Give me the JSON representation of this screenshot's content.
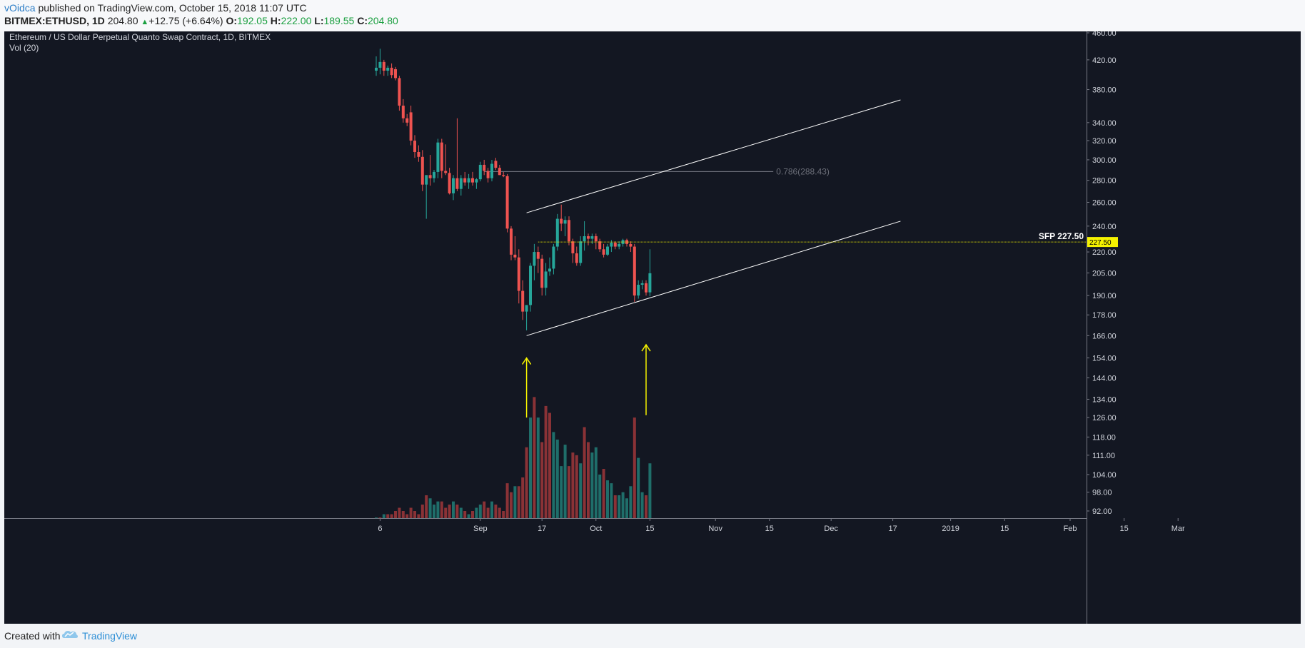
{
  "header": {
    "author": "vOidca",
    "published_text": "published on TradingView.com, October 15, 2018 11:07 UTC",
    "symbol": "BITMEX:ETHUSD, 1D",
    "last": "204.80",
    "change": "+12.75 (+6.64%)",
    "o_label": "O:",
    "o_value": "192.05",
    "h_label": "H:",
    "h_value": "222.00",
    "l_label": "L:",
    "l_value": "189.55",
    "c_label": "C:",
    "c_value": "204.80"
  },
  "footer": {
    "created_with": "Created with",
    "brand": "TradingView"
  },
  "colors": {
    "background": "#131722",
    "up": "#26a69a",
    "down": "#ef5350",
    "vol_up": "#1f6e6a",
    "vol_down": "#8a3236",
    "sfp_line": "#e7e700",
    "sfp_tag": "#f5f200",
    "arrow": "#f5f200",
    "channel": "#ffffff",
    "fib": "#787b86",
    "fib_text": "#6b6e78"
  },
  "chart_data": {
    "type": "candlestick",
    "title": "Ethereum / US Dollar Perpetual Quanto Swap Contract, 1D, BITMEX",
    "volume_label": "Vol (20)",
    "y_scale": "log",
    "ylim": [
      88,
      465
    ],
    "y_ticks": [
      "460.00",
      "420.00",
      "380.00",
      "340.00",
      "320.00",
      "300.00",
      "280.00",
      "260.00",
      "240.00",
      "220.00",
      "205.00",
      "190.00",
      "178.00",
      "166.00",
      "154.00",
      "144.00",
      "134.00",
      "126.00",
      "118.00",
      "111.00",
      "104.00",
      "98.00",
      "92.00"
    ],
    "x_ticks": [
      "6",
      "Sep",
      "17",
      "Oct",
      "15",
      "Nov",
      "15",
      "Dec",
      "17",
      "2019",
      "15",
      "Feb",
      "15",
      "Mar"
    ],
    "x_tick_dates": [
      "2018-08-06",
      "2018-09-01",
      "2018-09-17",
      "2018-10-01",
      "2018-10-15",
      "2018-11-01",
      "2018-11-15",
      "2018-12-01",
      "2018-12-17",
      "2019-01-01",
      "2019-01-15",
      "2019-02-01",
      "2019-02-15",
      "2019-03-01"
    ],
    "candles": [
      {
        "d": "2018-08-05",
        "o": 405,
        "h": 425,
        "l": 398,
        "c": 409
      },
      {
        "d": "2018-08-06",
        "o": 409,
        "h": 436,
        "l": 400,
        "c": 417
      },
      {
        "d": "2018-08-07",
        "o": 417,
        "h": 420,
        "l": 398,
        "c": 405
      },
      {
        "d": "2018-08-08",
        "o": 405,
        "h": 412,
        "l": 398,
        "c": 409
      },
      {
        "d": "2018-08-09",
        "o": 409,
        "h": 415,
        "l": 395,
        "c": 399
      },
      {
        "d": "2018-08-10",
        "o": 407,
        "h": 410,
        "l": 392,
        "c": 395
      },
      {
        "d": "2018-08-11",
        "o": 395,
        "h": 398,
        "l": 354,
        "c": 360
      },
      {
        "d": "2018-08-12",
        "o": 360,
        "h": 368,
        "l": 340,
        "c": 345
      },
      {
        "d": "2018-08-13",
        "o": 345,
        "h": 350,
        "l": 336,
        "c": 340
      },
      {
        "d": "2018-08-14",
        "o": 352,
        "h": 360,
        "l": 315,
        "c": 320
      },
      {
        "d": "2018-08-15",
        "o": 320,
        "h": 326,
        "l": 302,
        "c": 308
      },
      {
        "d": "2018-08-16",
        "o": 308,
        "h": 315,
        "l": 298,
        "c": 303
      },
      {
        "d": "2018-08-17",
        "o": 303,
        "h": 310,
        "l": 270,
        "c": 276
      },
      {
        "d": "2018-08-18",
        "o": 276,
        "h": 284,
        "l": 246,
        "c": 285
      },
      {
        "d": "2018-08-19",
        "o": 285,
        "h": 305,
        "l": 275,
        "c": 282
      },
      {
        "d": "2018-08-20",
        "o": 282,
        "h": 290,
        "l": 278,
        "c": 288
      },
      {
        "d": "2018-08-21",
        "o": 288,
        "h": 322,
        "l": 282,
        "c": 318
      },
      {
        "d": "2018-08-22",
        "o": 318,
        "h": 322,
        "l": 282,
        "c": 289
      },
      {
        "d": "2018-08-23",
        "o": 289,
        "h": 316,
        "l": 285,
        "c": 287
      },
      {
        "d": "2018-08-24",
        "o": 287,
        "h": 292,
        "l": 267,
        "c": 268
      },
      {
        "d": "2018-08-25",
        "o": 268,
        "h": 285,
        "l": 262,
        "c": 282
      },
      {
        "d": "2018-08-26",
        "o": 282,
        "h": 345,
        "l": 270,
        "c": 272
      },
      {
        "d": "2018-08-27",
        "o": 272,
        "h": 285,
        "l": 266,
        "c": 282
      },
      {
        "d": "2018-08-28",
        "o": 282,
        "h": 288,
        "l": 275,
        "c": 278
      },
      {
        "d": "2018-08-29",
        "o": 278,
        "h": 286,
        "l": 272,
        "c": 282
      },
      {
        "d": "2018-08-30",
        "o": 282,
        "h": 288,
        "l": 275,
        "c": 278
      },
      {
        "d": "2018-08-31",
        "o": 278,
        "h": 282,
        "l": 272,
        "c": 281
      },
      {
        "d": "2018-09-01",
        "o": 281,
        "h": 298,
        "l": 279,
        "c": 295
      },
      {
        "d": "2018-09-02",
        "o": 295,
        "h": 300,
        "l": 285,
        "c": 289
      },
      {
        "d": "2018-09-03",
        "o": 289,
        "h": 292,
        "l": 278,
        "c": 282
      },
      {
        "d": "2018-09-04",
        "o": 282,
        "h": 300,
        "l": 279,
        "c": 296
      },
      {
        "d": "2018-09-05",
        "o": 299,
        "h": 302,
        "l": 290,
        "c": 292
      },
      {
        "d": "2018-09-06",
        "o": 292,
        "h": 295,
        "l": 285,
        "c": 285
      },
      {
        "d": "2018-09-07",
        "o": 285,
        "h": 288,
        "l": 283,
        "c": 284
      },
      {
        "d": "2018-09-08",
        "o": 284,
        "h": 286,
        "l": 235,
        "c": 238
      },
      {
        "d": "2018-09-09",
        "o": 238,
        "h": 240,
        "l": 214,
        "c": 218
      },
      {
        "d": "2018-09-10",
        "o": 218,
        "h": 232,
        "l": 214,
        "c": 216
      },
      {
        "d": "2018-09-11",
        "o": 216,
        "h": 222,
        "l": 185,
        "c": 193
      },
      {
        "d": "2018-09-12",
        "o": 193,
        "h": 200,
        "l": 175,
        "c": 180
      },
      {
        "d": "2018-09-13",
        "o": 180,
        "h": 184,
        "l": 169,
        "c": 184
      },
      {
        "d": "2018-09-14",
        "o": 184,
        "h": 212,
        "l": 180,
        "c": 210
      },
      {
        "d": "2018-09-15",
        "o": 210,
        "h": 226,
        "l": 200,
        "c": 220
      },
      {
        "d": "2018-09-16",
        "o": 220,
        "h": 224,
        "l": 205,
        "c": 215
      },
      {
        "d": "2018-09-17",
        "o": 215,
        "h": 218,
        "l": 190,
        "c": 195
      },
      {
        "d": "2018-09-18",
        "o": 195,
        "h": 212,
        "l": 190,
        "c": 206
      },
      {
        "d": "2018-09-19",
        "o": 206,
        "h": 216,
        "l": 203,
        "c": 208
      },
      {
        "d": "2018-09-20",
        "o": 208,
        "h": 226,
        "l": 204,
        "c": 224
      },
      {
        "d": "2018-09-21",
        "o": 224,
        "h": 250,
        "l": 221,
        "c": 246
      },
      {
        "d": "2018-09-22",
        "o": 246,
        "h": 258,
        "l": 236,
        "c": 242
      },
      {
        "d": "2018-09-23",
        "o": 242,
        "h": 248,
        "l": 232,
        "c": 245
      },
      {
        "d": "2018-09-24",
        "o": 245,
        "h": 248,
        "l": 225,
        "c": 228
      },
      {
        "d": "2018-09-25",
        "o": 228,
        "h": 230,
        "l": 212,
        "c": 219
      },
      {
        "d": "2018-09-26",
        "o": 219,
        "h": 224,
        "l": 210,
        "c": 212
      },
      {
        "d": "2018-09-27",
        "o": 212,
        "h": 232,
        "l": 210,
        "c": 228
      },
      {
        "d": "2018-09-28",
        "o": 228,
        "h": 244,
        "l": 221,
        "c": 232
      },
      {
        "d": "2018-09-29",
        "o": 232,
        "h": 234,
        "l": 225,
        "c": 230
      },
      {
        "d": "2018-09-30",
        "o": 230,
        "h": 234,
        "l": 226,
        "c": 232
      },
      {
        "d": "2018-10-01",
        "o": 232,
        "h": 234,
        "l": 222,
        "c": 228
      },
      {
        "d": "2018-10-02",
        "o": 228,
        "h": 230,
        "l": 220,
        "c": 222
      },
      {
        "d": "2018-10-03",
        "o": 222,
        "h": 226,
        "l": 216,
        "c": 218
      },
      {
        "d": "2018-10-04",
        "o": 218,
        "h": 226,
        "l": 217,
        "c": 224
      },
      {
        "d": "2018-10-05",
        "o": 224,
        "h": 229,
        "l": 220,
        "c": 227
      },
      {
        "d": "2018-10-06",
        "o": 227,
        "h": 228,
        "l": 222,
        "c": 224
      },
      {
        "d": "2018-10-07",
        "o": 224,
        "h": 228,
        "l": 222,
        "c": 226
      },
      {
        "d": "2018-10-08",
        "o": 226,
        "h": 230,
        "l": 224,
        "c": 229
      },
      {
        "d": "2018-10-09",
        "o": 229,
        "h": 230,
        "l": 224,
        "c": 226
      },
      {
        "d": "2018-10-10",
        "o": 226,
        "h": 228,
        "l": 220,
        "c": 224
      },
      {
        "d": "2018-10-11",
        "o": 224,
        "h": 226,
        "l": 186,
        "c": 190
      },
      {
        "d": "2018-10-12",
        "o": 190,
        "h": 200,
        "l": 188,
        "c": 197
      },
      {
        "d": "2018-10-13",
        "o": 197,
        "h": 200,
        "l": 194,
        "c": 198
      },
      {
        "d": "2018-10-14",
        "o": 198,
        "h": 200,
        "l": 190,
        "c": 192
      },
      {
        "d": "2018-10-15",
        "o": 192.05,
        "h": 222,
        "l": 189.55,
        "c": 204.8
      }
    ],
    "volume_bars": [
      {
        "d": "2018-08-05",
        "v": 90,
        "dir": "up"
      },
      {
        "d": "2018-08-06",
        "v": 90,
        "dir": "down"
      },
      {
        "d": "2018-08-07",
        "v": 91,
        "dir": "up"
      },
      {
        "d": "2018-08-08",
        "v": 91,
        "dir": "down"
      },
      {
        "d": "2018-08-09",
        "v": 91,
        "dir": "down"
      },
      {
        "d": "2018-08-10",
        "v": 92,
        "dir": "down"
      },
      {
        "d": "2018-08-11",
        "v": 93,
        "dir": "down"
      },
      {
        "d": "2018-08-12",
        "v": 92,
        "dir": "down"
      },
      {
        "d": "2018-08-13",
        "v": 91,
        "dir": "down"
      },
      {
        "d": "2018-08-14",
        "v": 93,
        "dir": "down"
      },
      {
        "d": "2018-08-15",
        "v": 92,
        "dir": "down"
      },
      {
        "d": "2018-08-16",
        "v": 91,
        "dir": "down"
      },
      {
        "d": "2018-08-17",
        "v": 94,
        "dir": "down"
      },
      {
        "d": "2018-08-18",
        "v": 97,
        "dir": "down"
      },
      {
        "d": "2018-08-19",
        "v": 96,
        "dir": "up"
      },
      {
        "d": "2018-08-20",
        "v": 94,
        "dir": "up"
      },
      {
        "d": "2018-08-21",
        "v": 95,
        "dir": "up"
      },
      {
        "d": "2018-08-22",
        "v": 95,
        "dir": "down"
      },
      {
        "d": "2018-08-23",
        "v": 93,
        "dir": "down"
      },
      {
        "d": "2018-08-24",
        "v": 94,
        "dir": "down"
      },
      {
        "d": "2018-08-25",
        "v": 95,
        "dir": "up"
      },
      {
        "d": "2018-08-26",
        "v": 94,
        "dir": "down"
      },
      {
        "d": "2018-08-27",
        "v": 93,
        "dir": "up"
      },
      {
        "d": "2018-08-28",
        "v": 92,
        "dir": "down"
      },
      {
        "d": "2018-08-29",
        "v": 91,
        "dir": "up"
      },
      {
        "d": "2018-08-30",
        "v": 92,
        "dir": "down"
      },
      {
        "d": "2018-08-31",
        "v": 93,
        "dir": "up"
      },
      {
        "d": "2018-09-01",
        "v": 94,
        "dir": "up"
      },
      {
        "d": "2018-09-02",
        "v": 95,
        "dir": "down"
      },
      {
        "d": "2018-09-03",
        "v": 93,
        "dir": "down"
      },
      {
        "d": "2018-09-04",
        "v": 95,
        "dir": "up"
      },
      {
        "d": "2018-09-05",
        "v": 94,
        "dir": "down"
      },
      {
        "d": "2018-09-06",
        "v": 93,
        "dir": "down"
      },
      {
        "d": "2018-09-07",
        "v": 92,
        "dir": "down"
      },
      {
        "d": "2018-09-08",
        "v": 101,
        "dir": "down"
      },
      {
        "d": "2018-09-09",
        "v": 98,
        "dir": "down"
      },
      {
        "d": "2018-09-10",
        "v": 100,
        "dir": "up"
      },
      {
        "d": "2018-09-11",
        "v": 100,
        "dir": "down"
      },
      {
        "d": "2018-09-12",
        "v": 103,
        "dir": "down"
      },
      {
        "d": "2018-09-13",
        "v": 114,
        "dir": "down"
      },
      {
        "d": "2018-09-14",
        "v": 126,
        "dir": "up"
      },
      {
        "d": "2018-09-15",
        "v": 135,
        "dir": "down"
      },
      {
        "d": "2018-09-16",
        "v": 126,
        "dir": "up"
      },
      {
        "d": "2018-09-17",
        "v": 116,
        "dir": "down"
      },
      {
        "d": "2018-09-18",
        "v": 131,
        "dir": "down"
      },
      {
        "d": "2018-09-19",
        "v": 128,
        "dir": "down"
      },
      {
        "d": "2018-09-20",
        "v": 120,
        "dir": "up"
      },
      {
        "d": "2018-09-21",
        "v": 117,
        "dir": "up"
      },
      {
        "d": "2018-09-22",
        "v": 107,
        "dir": "up"
      },
      {
        "d": "2018-09-23",
        "v": 115,
        "dir": "up"
      },
      {
        "d": "2018-09-24",
        "v": 107,
        "dir": "down"
      },
      {
        "d": "2018-09-25",
        "v": 112,
        "dir": "down"
      },
      {
        "d": "2018-09-26",
        "v": 111,
        "dir": "down"
      },
      {
        "d": "2018-09-27",
        "v": 108,
        "dir": "up"
      },
      {
        "d": "2018-09-28",
        "v": 122,
        "dir": "down"
      },
      {
        "d": "2018-09-29",
        "v": 116,
        "dir": "down"
      },
      {
        "d": "2018-09-30",
        "v": 112,
        "dir": "up"
      },
      {
        "d": "2018-10-01",
        "v": 114,
        "dir": "up"
      },
      {
        "d": "2018-10-02",
        "v": 104,
        "dir": "up"
      },
      {
        "d": "2018-10-03",
        "v": 106,
        "dir": "down"
      },
      {
        "d": "2018-10-04",
        "v": 102,
        "dir": "up"
      },
      {
        "d": "2018-10-05",
        "v": 101,
        "dir": "up"
      },
      {
        "d": "2018-10-06",
        "v": 97,
        "dir": "down"
      },
      {
        "d": "2018-10-07",
        "v": 97,
        "dir": "up"
      },
      {
        "d": "2018-10-08",
        "v": 98,
        "dir": "up"
      },
      {
        "d": "2018-10-09",
        "v": 96,
        "dir": "up"
      },
      {
        "d": "2018-10-10",
        "v": 100,
        "dir": "up"
      },
      {
        "d": "2018-10-11",
        "v": 126,
        "dir": "down"
      },
      {
        "d": "2018-10-12",
        "v": 110,
        "dir": "up"
      },
      {
        "d": "2018-10-13",
        "v": 98,
        "dir": "up"
      },
      {
        "d": "2018-10-14",
        "v": 97,
        "dir": "down"
      },
      {
        "d": "2018-10-15",
        "v": 108,
        "dir": "up"
      }
    ],
    "channel_upper": {
      "from": {
        "d": "2018-09-13",
        "p": 251
      },
      "to": {
        "d": "2018-12-19",
        "p": 367
      }
    },
    "channel_lower": {
      "from": {
        "d": "2018-09-13",
        "p": 166
      },
      "to": {
        "d": "2018-12-19",
        "p": 244
      }
    },
    "fib_line": {
      "from": {
        "d": "2018-09-02",
        "p": 288.43
      },
      "to": {
        "d": "2018-11-16",
        "p": 288.43
      },
      "label": "0.786(288.43)"
    },
    "sfp_level": {
      "from": {
        "d": "2018-09-16",
        "p": 227.5
      },
      "label": "SFP 227.50",
      "tag": "227.50"
    },
    "arrows": [
      {
        "d": "2018-09-13",
        "from": 126,
        "to": 154
      },
      {
        "d": "2018-10-14",
        "from": 127,
        "to": 161
      }
    ]
  }
}
